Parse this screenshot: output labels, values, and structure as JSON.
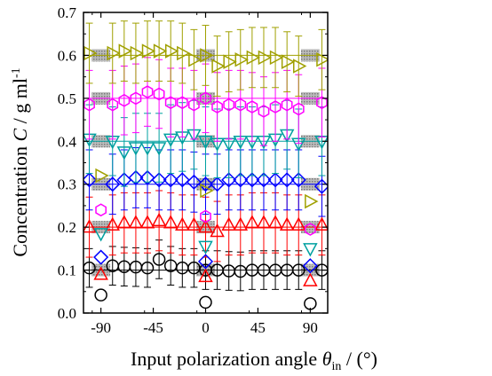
{
  "chart_data": {
    "type": "scatter",
    "title": "",
    "xlabel": {
      "main": "Input polarization angle ",
      "symbol": "θ",
      "subscript": "in",
      "unit": " / (°)"
    },
    "ylabel": {
      "main": "Concentration ",
      "symbol": "C",
      "unit": " / g ml",
      "superscript": "-1"
    },
    "xlim": [
      -105,
      105
    ],
    "ylim": [
      0.0,
      0.7
    ],
    "xticks": [
      -90,
      -45,
      0,
      45,
      90
    ],
    "xtick_labels": [
      "-90",
      "-45",
      "0",
      "45",
      "90"
    ],
    "yticks": [
      0.0,
      0.1,
      0.2,
      0.3,
      0.4,
      0.5,
      0.6,
      0.7
    ],
    "ytick_labels": [
      "0.0",
      "0.1",
      "0.2",
      "0.3",
      "0.4",
      "0.5",
      "0.6",
      "0.7"
    ],
    "grid": false,
    "legend": false,
    "bands": {
      "x_centers": [
        -90,
        0,
        90
      ],
      "half_width": 8
    },
    "x": [
      -100,
      -80,
      -70,
      -60,
      -50,
      -40,
      -30,
      -20,
      -10,
      0,
      10,
      20,
      30,
      40,
      50,
      60,
      70,
      80,
      100
    ],
    "series": [
      {
        "name": "",
        "marker": "circle",
        "color": "#000000",
        "nominal": 0.1,
        "values": [
          0.105,
          0.11,
          0.108,
          0.107,
          0.105,
          0.125,
          0.11,
          0.105,
          0.105,
          0.1,
          0.1,
          0.098,
          0.097,
          0.1,
          0.1,
          0.1,
          0.1,
          0.1,
          0.1
        ],
        "errors": [
          0.045,
          0.045,
          0.045,
          0.045,
          0.045,
          0.045,
          0.045,
          0.045,
          0.045,
          0.045,
          0.045,
          0.045,
          0.045,
          0.045,
          0.045,
          0.045,
          0.045,
          0.045,
          0.045
        ],
        "extra_points": [
          {
            "x": -90,
            "y": 0.042
          },
          {
            "x": 0,
            "y": 0.025
          },
          {
            "x": 90,
            "y": 0.022
          }
        ]
      },
      {
        "name": "",
        "marker": "triangle-up",
        "color": "#ff0000",
        "nominal": 0.2,
        "values": [
          0.2,
          0.205,
          0.21,
          0.21,
          0.21,
          0.215,
          0.21,
          0.205,
          0.205,
          0.2,
          0.19,
          0.205,
          0.205,
          0.21,
          0.21,
          0.21,
          0.205,
          0.205,
          0.205
        ],
        "errors": [
          0.07,
          0.07,
          0.07,
          0.07,
          0.07,
          0.07,
          0.07,
          0.07,
          0.07,
          0.07,
          0.07,
          0.07,
          0.07,
          0.07,
          0.07,
          0.07,
          0.07,
          0.07,
          0.07
        ],
        "extra_points": [
          {
            "x": -90,
            "y": 0.09
          },
          {
            "x": 0,
            "y": 0.085
          },
          {
            "x": 90,
            "y": 0.075
          }
        ]
      },
      {
        "name": "",
        "marker": "diamond",
        "color": "#0000ff",
        "nominal": 0.3,
        "values": [
          0.31,
          0.3,
          0.31,
          0.315,
          0.315,
          0.31,
          0.31,
          0.31,
          0.305,
          0.3,
          0.3,
          0.31,
          0.31,
          0.31,
          0.31,
          0.31,
          0.31,
          0.31,
          0.295
        ],
        "errors": [
          0.07,
          0.07,
          0.07,
          0.07,
          0.07,
          0.07,
          0.07,
          0.07,
          0.07,
          0.07,
          0.07,
          0.07,
          0.07,
          0.07,
          0.07,
          0.07,
          0.07,
          0.07,
          0.07
        ],
        "extra_points": [
          {
            "x": -90,
            "y": 0.13
          },
          {
            "x": 0,
            "y": 0.12
          },
          {
            "x": 90,
            "y": 0.11
          }
        ]
      },
      {
        "name": "",
        "marker": "triangle-down",
        "color": "#00a0a0",
        "nominal": 0.4,
        "values": [
          0.405,
          0.4,
          0.375,
          0.385,
          0.385,
          0.385,
          0.405,
          0.41,
          0.415,
          0.4,
          0.395,
          0.395,
          0.4,
          0.4,
          0.4,
          0.405,
          0.415,
          0.395,
          0.4
        ],
        "errors": [
          0.08,
          0.08,
          0.08,
          0.08,
          0.08,
          0.08,
          0.08,
          0.08,
          0.08,
          0.08,
          0.08,
          0.08,
          0.08,
          0.08,
          0.08,
          0.08,
          0.08,
          0.08,
          0.08
        ],
        "extra_points": [
          {
            "x": -90,
            "y": 0.185
          },
          {
            "x": 0,
            "y": 0.155
          },
          {
            "x": 90,
            "y": 0.15
          }
        ]
      },
      {
        "name": "",
        "marker": "hexagon",
        "color": "#ff00ff",
        "nominal": 0.5,
        "values": [
          0.485,
          0.485,
          0.495,
          0.5,
          0.515,
          0.51,
          0.49,
          0.49,
          0.485,
          0.5,
          0.48,
          0.485,
          0.485,
          0.48,
          0.47,
          0.48,
          0.485,
          0.475,
          0.49
        ],
        "errors": [
          0.08,
          0.08,
          0.08,
          0.08,
          0.08,
          0.08,
          0.08,
          0.08,
          0.08,
          0.08,
          0.08,
          0.08,
          0.08,
          0.08,
          0.08,
          0.08,
          0.08,
          0.08,
          0.08
        ],
        "extra_points": [
          {
            "x": -90,
            "y": 0.24
          },
          {
            "x": 0,
            "y": 0.225
          },
          {
            "x": 90,
            "y": 0.195
          }
        ]
      },
      {
        "name": "",
        "marker": "triangle-right",
        "color": "#a0a000",
        "nominal": 0.6,
        "values": [
          0.605,
          0.605,
          0.61,
          0.605,
          0.61,
          0.61,
          0.61,
          0.605,
          0.59,
          0.6,
          0.575,
          0.585,
          0.59,
          0.595,
          0.595,
          0.595,
          0.585,
          0.575,
          0.59
        ],
        "errors": [
          0.07,
          0.07,
          0.07,
          0.07,
          0.07,
          0.07,
          0.07,
          0.07,
          0.07,
          0.07,
          0.07,
          0.07,
          0.07,
          0.07,
          0.07,
          0.07,
          0.07,
          0.07,
          0.07
        ],
        "extra_points": [
          {
            "x": -90,
            "y": 0.32
          },
          {
            "x": 0,
            "y": 0.285
          },
          {
            "x": 90,
            "y": 0.26
          }
        ]
      }
    ]
  }
}
